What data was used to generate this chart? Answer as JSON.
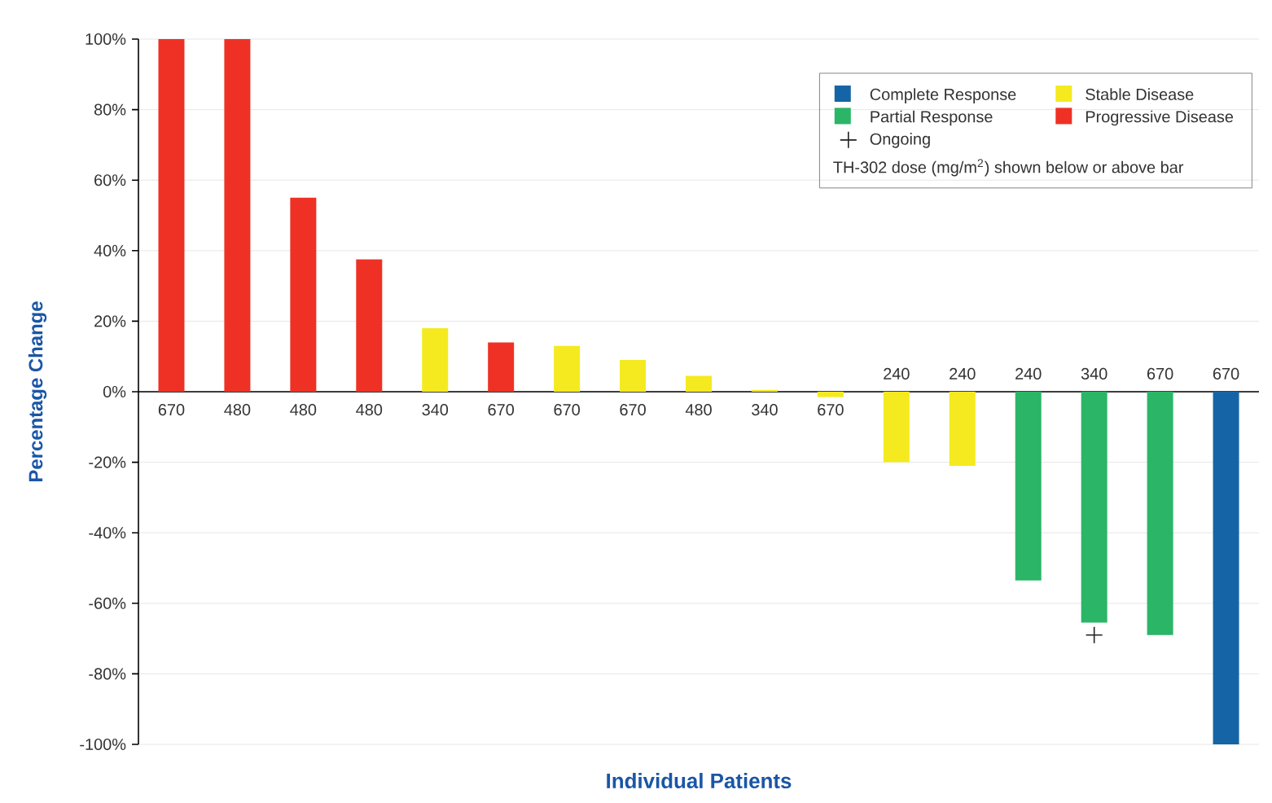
{
  "chart_data": {
    "type": "bar",
    "xlabel": "Individual Patients",
    "ylabel": "Percentage Change",
    "categories": [
      "670",
      "480",
      "480",
      "480",
      "340",
      "670",
      "670",
      "670",
      "480",
      "340",
      "670",
      "240",
      "240",
      "240",
      "340",
      "670",
      "670"
    ],
    "series": [
      {
        "name": "Complete Response",
        "color": "#1565a6",
        "values": [
          null,
          null,
          null,
          null,
          null,
          null,
          null,
          null,
          null,
          null,
          null,
          null,
          null,
          null,
          null,
          null,
          -100
        ]
      },
      {
        "name": "Stable Disease",
        "color": "#f4ea1f",
        "values": [
          null,
          null,
          null,
          null,
          18,
          null,
          13,
          9,
          4.5,
          0.5,
          -1.5,
          -20,
          -21,
          null,
          null,
          null,
          null
        ]
      },
      {
        "name": "Partial Response",
        "color": "#2bb566",
        "values": [
          null,
          null,
          null,
          null,
          null,
          null,
          null,
          null,
          null,
          null,
          null,
          null,
          null,
          -53.5,
          -65.5,
          -69,
          null
        ]
      },
      {
        "name": "Progressive Disease",
        "color": "#ee3124",
        "values": [
          100,
          100,
          55,
          37.5,
          null,
          14,
          null,
          null,
          null,
          null,
          null,
          null,
          null,
          null,
          null,
          null,
          null
        ]
      },
      {
        "name": "Ongoing",
        "type": "scatter",
        "marker": "cross",
        "color": "#222222",
        "values": [
          null,
          null,
          null,
          null,
          null,
          null,
          null,
          null,
          null,
          null,
          null,
          null,
          null,
          null,
          -69,
          null,
          null
        ]
      }
    ],
    "ylim": [
      -100,
      100
    ],
    "yticks": [
      {
        "value": -100,
        "label": "-100%"
      },
      {
        "value": -80,
        "label": "-80%"
      },
      {
        "value": -60,
        "label": "-60%"
      },
      {
        "value": -40,
        "label": "-40%"
      },
      {
        "value": -20,
        "label": "-20%"
      },
      {
        "value": 0,
        "label": "0%"
      },
      {
        "value": 20,
        "label": "20%"
      },
      {
        "value": 40,
        "label": "40%"
      },
      {
        "value": 60,
        "label": "60%"
      },
      {
        "value": 80,
        "label": "80%"
      },
      {
        "value": 100,
        "label": "100%"
      }
    ],
    "grid": "y",
    "legend": "top right",
    "annotations": [
      "TH-302 dose (mg/m$^{2}$) shown below or above bar"
    ]
  }
}
